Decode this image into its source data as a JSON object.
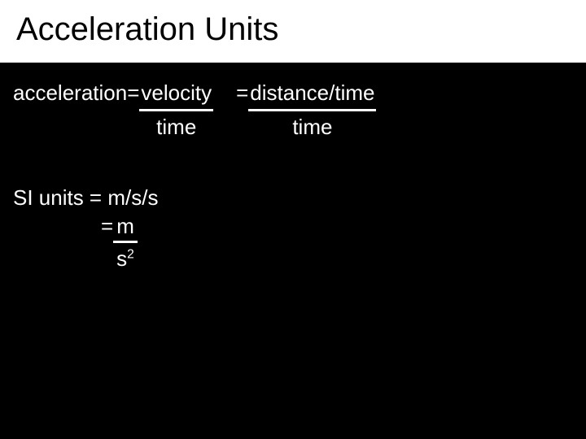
{
  "colors": {
    "background": "#000000",
    "title_bar_bg": "#ffffff",
    "title_text": "#000000",
    "body_text": "#ffffff",
    "underline": "#ffffff"
  },
  "typography": {
    "title_fontsize": 40,
    "body_fontsize": 26,
    "font_family": "Arial"
  },
  "title": "Acceleration Units",
  "eq1": {
    "lhs": "acceleration= ",
    "numerator": "velocity",
    "denominator": "time"
  },
  "eq2": {
    "lhs": "= ",
    "numerator": "distance/time",
    "denominator": "time"
  },
  "si": {
    "line1": "SI units = m/s/s",
    "line2_lhs": "= ",
    "line2_num": "m",
    "line2_den_base": "s",
    "line2_den_exp": "2"
  }
}
